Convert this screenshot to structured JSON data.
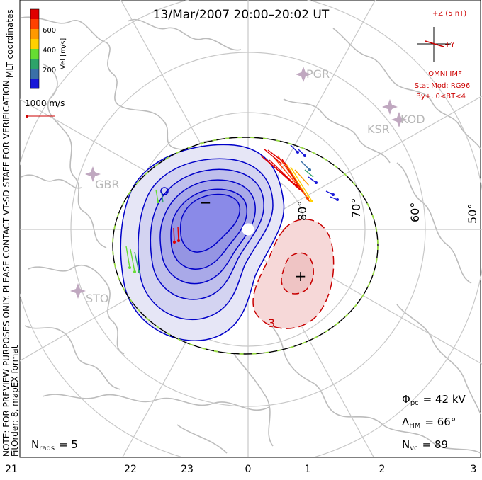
{
  "title": "13/Mar/2007 20:00–20:02 UT",
  "coordinates_label": "MLT coordinates",
  "velocity_scale": {
    "label": "Vel [m/s]",
    "ticks": [
      "600",
      "400",
      "200"
    ],
    "colors": [
      "#e00000",
      "#ff4000",
      "#ff9900",
      "#ffd000",
      "#66dd33",
      "#2ea36a",
      "#3a70a8",
      "#1818d8"
    ]
  },
  "reference_vector_label": "1000 m/s",
  "imf": {
    "z_label": "+Z (5 nT)",
    "y_label": "+Y",
    "source": "OMNI IMF",
    "model": "Stat Mod: RG96",
    "condition": "By+, 0<BT<4",
    "color": "#cc0000"
  },
  "latitude_labels": [
    "80°",
    "70°",
    "60°",
    "50°"
  ],
  "station_labels": [
    "PGR",
    "KSR",
    "KOD",
    "GBR",
    "STO"
  ],
  "cell_labels": {
    "negative": "−",
    "positive": "+",
    "contour_value": "3"
  },
  "mlt_labels": [
    "21",
    "22",
    "23",
    "0",
    "1",
    "2",
    "3"
  ],
  "notes": [
    "NOTE: FOR PREVIEW PURPOSES ONLY. PLEASE CONTACT VT-SD STAFF FOR VERIFICATION.",
    "FitOrder: 8,  mapEX format"
  ],
  "stats": {
    "n_rads_label": "N",
    "n_rads_sub": "rads",
    "n_rads_value": "= 5",
    "phi_label": "Φ",
    "phi_sub": "pc",
    "phi_value": "= 42 kV",
    "lambda_label": "Λ",
    "lambda_sub": "HM",
    "lambda_value": "= 66°",
    "nvc_label": "N",
    "nvc_sub": "vc",
    "nvc_value": "= 89"
  },
  "colors": {
    "negative_contour": "#0000c8",
    "negative_fill": "#8a8ae8",
    "positive_contour": "#c80000",
    "positive_fill": "#f0c0c0",
    "coastline": "#bcbcbc",
    "grid": "#c8c8c8",
    "hm_boundary": "#000000",
    "hm_dash": "#99dd44"
  }
}
